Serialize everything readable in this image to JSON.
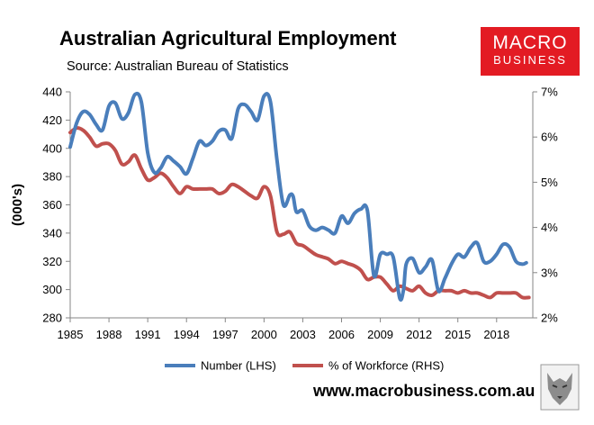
{
  "header": {
    "title": "Australian Agricultural Employment",
    "subtitle": "Source: Australian Bureau of Statistics"
  },
  "logo": {
    "line1": "MACRO",
    "line2": "BUSINESS"
  },
  "footer": {
    "url": "www.macrobusiness.com.au"
  },
  "chart_data": {
    "type": "line",
    "ylabel_left": "(000's)",
    "ylim_left": [
      280,
      440
    ],
    "yticks_left": [
      "280",
      "300",
      "320",
      "340",
      "360",
      "380",
      "400",
      "420",
      "440"
    ],
    "ylim_right": [
      2,
      7
    ],
    "yticks_right": [
      "2%",
      "3%",
      "4%",
      "5%",
      "6%",
      "7%"
    ],
    "xlim": [
      1985,
      2020.8
    ],
    "xticks": [
      "1985",
      "1988",
      "1991",
      "1994",
      "1997",
      "2000",
      "2003",
      "2006",
      "2009",
      "2012",
      "2015",
      "2018"
    ],
    "grid": false,
    "legend_position": "bottom",
    "series": [
      {
        "name": "Number (LHS)",
        "axis": "left",
        "color": "#4a7ebb",
        "x": [
          1985,
          1985.5,
          1986,
          1986.5,
          1987,
          1987.5,
          1988,
          1988.5,
          1989,
          1989.5,
          1990,
          1990.5,
          1991,
          1991.5,
          1992,
          1992.5,
          1993,
          1993.5,
          1994,
          1994.5,
          1995,
          1995.5,
          1996,
          1996.5,
          1997,
          1997.5,
          1998,
          1998.5,
          1999,
          1999.5,
          2000,
          2000.5,
          2001,
          2001.5,
          2002,
          2002.25,
          2002.5,
          2003,
          2003.5,
          2004,
          2004.5,
          2005,
          2005.5,
          2006,
          2006.5,
          2007,
          2007.5,
          2008,
          2008.5,
          2009,
          2009.5,
          2010,
          2010.5,
          2010.8,
          2011,
          2011.5,
          2012,
          2012.5,
          2013,
          2013.5,
          2014,
          2014.5,
          2015,
          2015.5,
          2016,
          2016.5,
          2017,
          2017.5,
          2018,
          2018.5,
          2019,
          2019.5,
          2020,
          2020.3
        ],
        "y": [
          401,
          418,
          426,
          424,
          417,
          413,
          430,
          432,
          421,
          425,
          438,
          433,
          397,
          383,
          386,
          394,
          391,
          387,
          382,
          393,
          405,
          402,
          405,
          412,
          413,
          407,
          428,
          431,
          426,
          420,
          437,
          433,
          392,
          360,
          367,
          366,
          355,
          356,
          345,
          342,
          344,
          342,
          340,
          352,
          347,
          354,
          357,
          356,
          310,
          325,
          325,
          323,
          294,
          300,
          318,
          322,
          312,
          316,
          321,
          299,
          308,
          318,
          325,
          323,
          330,
          333,
          320,
          320,
          325,
          332,
          330,
          320,
          318,
          319
        ],
        "values_note": ""
      },
      {
        "name": "% of Workforce (RHS)",
        "axis": "right",
        "color": "#c0504d",
        "x": [
          1985,
          1985.5,
          1986,
          1986.5,
          1987,
          1987.5,
          1988,
          1988.5,
          1989,
          1989.5,
          1990,
          1990.5,
          1991,
          1991.5,
          1992,
          1992.5,
          1993,
          1993.5,
          1994,
          1994.5,
          1995,
          1995.5,
          1996,
          1996.5,
          1997,
          1997.5,
          1998,
          1998.5,
          1999,
          1999.5,
          2000,
          2000.5,
          2001,
          2001.5,
          2002,
          2002.5,
          2003,
          2003.5,
          2004,
          2004.5,
          2005,
          2005.5,
          2006,
          2006.5,
          2007,
          2007.5,
          2008,
          2008.5,
          2009,
          2009.5,
          2010,
          2010.5,
          2011,
          2011.5,
          2012,
          2012.5,
          2013,
          2013.5,
          2014,
          2014.5,
          2015,
          2015.5,
          2016,
          2016.5,
          2017,
          2017.5,
          2018,
          2018.5,
          2019,
          2019.5,
          2020,
          2020.5
        ],
        "y": [
          6.1,
          6.2,
          6.15,
          6.0,
          5.8,
          5.85,
          5.85,
          5.7,
          5.4,
          5.45,
          5.6,
          5.3,
          5.05,
          5.1,
          5.2,
          5.1,
          4.9,
          4.75,
          4.9,
          4.85,
          4.85,
          4.85,
          4.85,
          4.75,
          4.8,
          4.95,
          4.9,
          4.8,
          4.7,
          4.65,
          4.9,
          4.7,
          3.9,
          3.85,
          3.9,
          3.65,
          3.6,
          3.5,
          3.4,
          3.35,
          3.3,
          3.2,
          3.25,
          3.2,
          3.15,
          3.05,
          2.85,
          2.9,
          2.9,
          2.75,
          2.6,
          2.7,
          2.65,
          2.6,
          2.7,
          2.55,
          2.5,
          2.6,
          2.6,
          2.6,
          2.55,
          2.6,
          2.55,
          2.55,
          2.5,
          2.45,
          2.55,
          2.55,
          2.55,
          2.55,
          2.45,
          2.45
        ],
        "values_note": ""
      }
    ]
  }
}
